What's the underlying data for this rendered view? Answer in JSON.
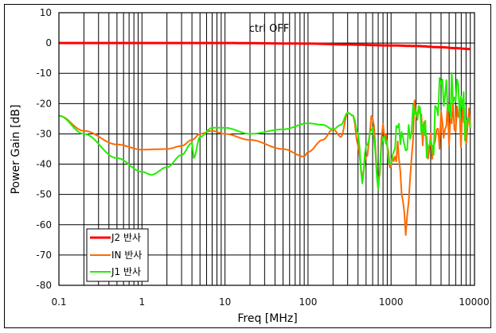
{
  "chart_data": {
    "type": "line",
    "title": "",
    "annotation": "ctrl OFF",
    "xlabel": "Freq [MHz]",
    "ylabel": "Power Gain [dB]",
    "xscale": "log",
    "xlim": [
      0.1,
      10000
    ],
    "ylim": [
      -80,
      10
    ],
    "grid": true,
    "x_ticks": [
      "0.1",
      "1",
      "10",
      "100",
      "1000",
      "10000"
    ],
    "y_ticks": [
      "10",
      "0",
      "-10",
      "-20",
      "-30",
      "-40",
      "-50",
      "-60",
      "-70",
      "-80"
    ],
    "legend_position": "lower-left",
    "series": [
      {
        "name": "J2 반사",
        "color": "#ff0000",
        "x": [
          0.1,
          1,
          10,
          100,
          300,
          1000,
          2000,
          4000,
          6000,
          9000
        ],
        "y": [
          0,
          0,
          0,
          -0.2,
          -0.5,
          -0.8,
          -1.0,
          -1.4,
          -1.7,
          -2.0
        ]
      },
      {
        "name": "IN 반사",
        "color": "#ff6a00",
        "x": [
          0.1,
          0.2,
          0.5,
          1,
          2,
          3,
          4,
          5,
          7,
          10,
          20,
          50,
          90,
          100,
          150,
          200,
          250,
          300,
          350,
          400,
          450,
          500,
          600,
          700,
          800,
          1000,
          1200,
          1500,
          2000,
          3000,
          4000,
          6000,
          9000
        ],
        "y": [
          -24,
          -29,
          -33.5,
          -35.2,
          -35,
          -34,
          -32,
          -30,
          -29,
          -30,
          -32,
          -35,
          -37.5,
          -36,
          -32,
          -28.5,
          -31,
          -23,
          -24,
          -34,
          -44,
          -38,
          -24,
          -46,
          -28,
          -40,
          -36,
          -60,
          -22,
          -35,
          -28,
          -25,
          -28
        ]
      },
      {
        "name": "J1 반사",
        "color": "#22ee00",
        "x": [
          0.1,
          0.2,
          0.5,
          1,
          1.3,
          2,
          3,
          4,
          4.2,
          5,
          7,
          10,
          20,
          50,
          100,
          150,
          200,
          250,
          300,
          350,
          400,
          450,
          500,
          600,
          700,
          800,
          1000,
          1200,
          1500,
          2000,
          3000,
          4000,
          5000,
          6000,
          9000
        ],
        "y": [
          -24,
          -30,
          -38,
          -42.5,
          -43.5,
          -41,
          -37,
          -33,
          -38,
          -31,
          -28,
          -28,
          -30,
          -28.5,
          -26.5,
          -27,
          -28.5,
          -27,
          -23,
          -24,
          -30,
          -46,
          -34,
          -28,
          -47,
          -30,
          -40,
          -28,
          -34,
          -22,
          -35,
          -14,
          -20,
          -16,
          -28
        ]
      }
    ]
  },
  "legend": {
    "items": [
      {
        "label": "J2 반사",
        "color": "#ff0000"
      },
      {
        "label": "IN 반사",
        "color": "#ff6a00"
      },
      {
        "label": "J1 반사",
        "color": "#22ee00"
      }
    ]
  }
}
